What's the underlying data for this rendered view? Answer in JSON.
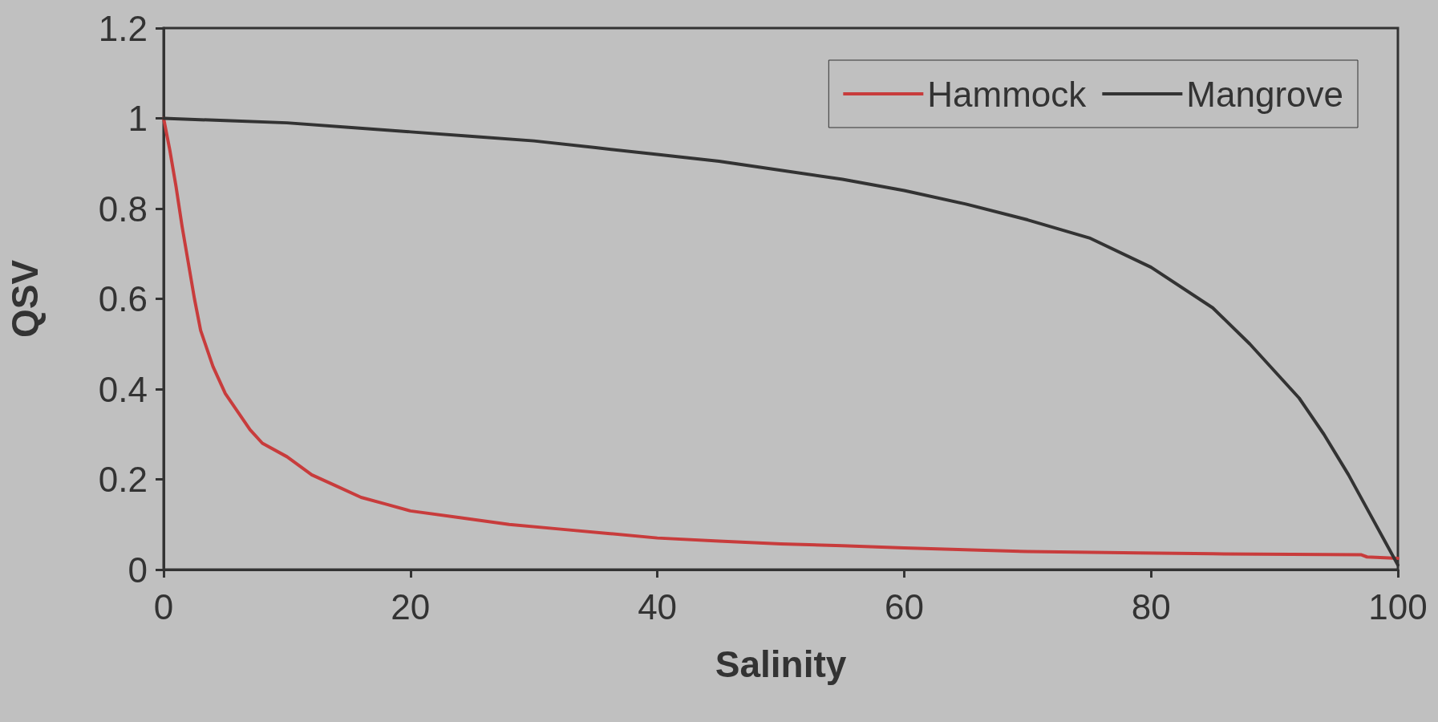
{
  "chart_data": {
    "type": "line",
    "xlabel": "Salinity",
    "ylabel": "QSV",
    "xlim": [
      0,
      100
    ],
    "xticks": [
      0,
      20,
      40,
      60,
      80,
      100
    ],
    "ylim": [
      0,
      1.2
    ],
    "yticks": [
      0,
      0.2,
      0.4,
      0.6,
      0.8,
      1,
      1.2
    ],
    "grid": false,
    "legend": "top right",
    "marker": "none",
    "line_style": "solid",
    "series": [
      {
        "name": "Hammock",
        "color": "#c83c3c",
        "x": [
          0,
          0.5,
          1,
          1.5,
          2,
          2.5,
          3,
          4,
          5,
          6,
          7,
          8,
          10,
          12,
          14,
          16,
          18,
          20,
          24,
          28,
          32,
          36,
          40,
          45,
          50,
          55,
          60,
          66,
          70,
          79,
          85,
          97,
          97.5,
          100
        ],
        "values": [
          1,
          0.93,
          0.85,
          0.76,
          0.68,
          0.6,
          0.53,
          0.45,
          0.39,
          0.35,
          0.31,
          0.28,
          0.25,
          0.21,
          0.185,
          0.16,
          0.145,
          0.13,
          0.115,
          0.1,
          0.09,
          0.08,
          0.07,
          0.063,
          0.057,
          0.053,
          0.048,
          0.043,
          0.04,
          0.037,
          0.035,
          0.033,
          0.028,
          0.025
        ]
      },
      {
        "name": "Mangrove",
        "color": "#333333",
        "x": [
          0,
          5,
          10,
          15,
          20,
          25,
          30,
          35,
          40,
          45,
          50,
          55,
          60,
          65,
          70,
          75,
          80,
          85,
          88,
          90,
          92,
          94,
          96,
          98,
          99,
          100
        ],
        "values": [
          1,
          0.995,
          0.99,
          0.98,
          0.97,
          0.96,
          0.95,
          0.935,
          0.92,
          0.905,
          0.885,
          0.865,
          0.84,
          0.81,
          0.775,
          0.735,
          0.67,
          0.58,
          0.5,
          0.44,
          0.38,
          0.3,
          0.21,
          0.11,
          0.06,
          0.01
        ]
      }
    ]
  }
}
